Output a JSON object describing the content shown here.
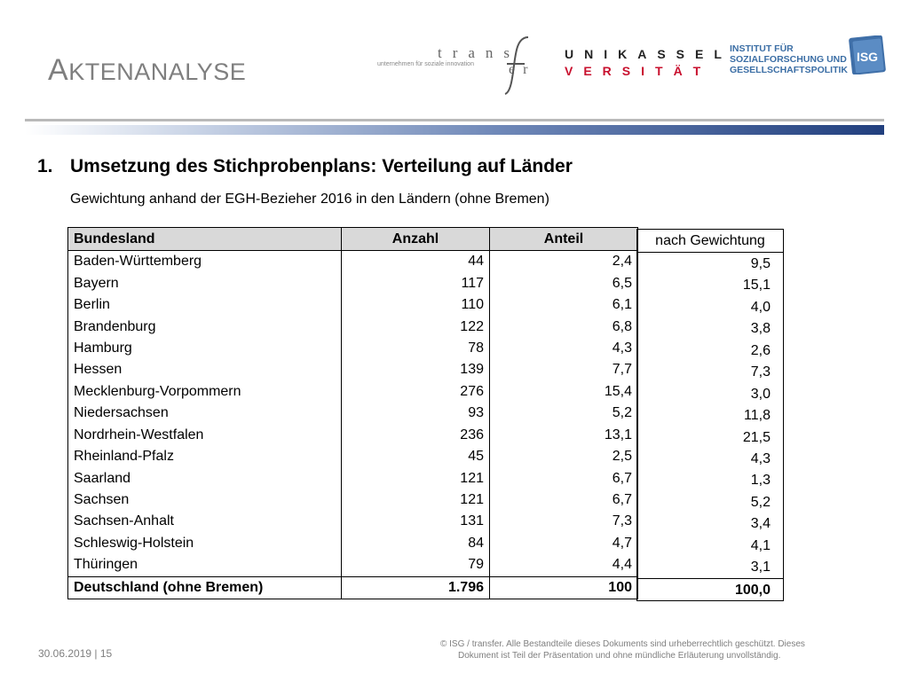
{
  "slide": {
    "title_first": "A",
    "title_rest": "KTENANALYSE",
    "heading_number": "1.",
    "heading_text": "Umsetzung des Stichprobenplans: Verteilung auf Länder",
    "subheading": "Gewichtung anhand der EGH-Bezieher 2016 in den Ländern (ohne Bremen)"
  },
  "logos": {
    "transfer_word": "trans",
    "transfer_word2": "er",
    "transfer_tag": "unternehmen für soziale innovation",
    "kassel_row1": "UNIKASSEL",
    "kassel_row2": "VERSITÄT",
    "isg_line1": "INSTITUT FÜR",
    "isg_line2": "SOZIALFORSCHUNG UND",
    "isg_line3": "GESELLSCHAFTSPOLITIK",
    "isg_box": "ISG"
  },
  "table": {
    "headers": [
      "Bundesland",
      "Anzahl",
      "Anteil"
    ],
    "rows": [
      [
        "Baden-Württemberg",
        "44",
        "2,4"
      ],
      [
        "Bayern",
        "117",
        "6,5"
      ],
      [
        "Berlin",
        "110",
        "6,1"
      ],
      [
        "Brandenburg",
        "122",
        "6,8"
      ],
      [
        "Hamburg",
        "78",
        "4,3"
      ],
      [
        "Hessen",
        "139",
        "7,7"
      ],
      [
        "Mecklenburg-Vorpommern",
        "276",
        "15,4"
      ],
      [
        "Niedersachsen",
        "93",
        "5,2"
      ],
      [
        "Nordrhein-Westfalen",
        "236",
        "13,1"
      ],
      [
        "Rheinland-Pfalz",
        "45",
        "2,5"
      ],
      [
        "Saarland",
        "121",
        "6,7"
      ],
      [
        "Sachsen",
        "121",
        "6,7"
      ],
      [
        "Sachsen-Anhalt",
        "131",
        "7,3"
      ],
      [
        "Schleswig-Holstein",
        "84",
        "4,7"
      ],
      [
        "Thüringen",
        "79",
        "4,4"
      ]
    ],
    "total": [
      "Deutschland (ohne Bremen)",
      "1.796",
      "100"
    ]
  },
  "weighting": {
    "header": "nach Gewichtung",
    "values": [
      "9,5",
      "15,1",
      "4,0",
      "3,8",
      "2,6",
      "7,3",
      "3,0",
      "11,8",
      "21,5",
      "4,3",
      "1,3",
      "5,2",
      "3,4",
      "4,1",
      "3,1"
    ],
    "total": "100,0"
  },
  "footer": {
    "date_page": "30.06.2019 | 15",
    "copyright_line1": "© ISG / transfer. Alle Bestandteile dieses Dokuments sind urheberrechtlich geschützt. Dieses",
    "copyright_line2": "Dokument ist Teil der Präsentation und ohne mündliche Erläuterung unvollständig."
  },
  "colors": {
    "accent_blue": "#213f7e",
    "kassel_red": "#c8102e",
    "isg_blue": "#3b6ea5",
    "header_fill": "#d9d9d9"
  }
}
